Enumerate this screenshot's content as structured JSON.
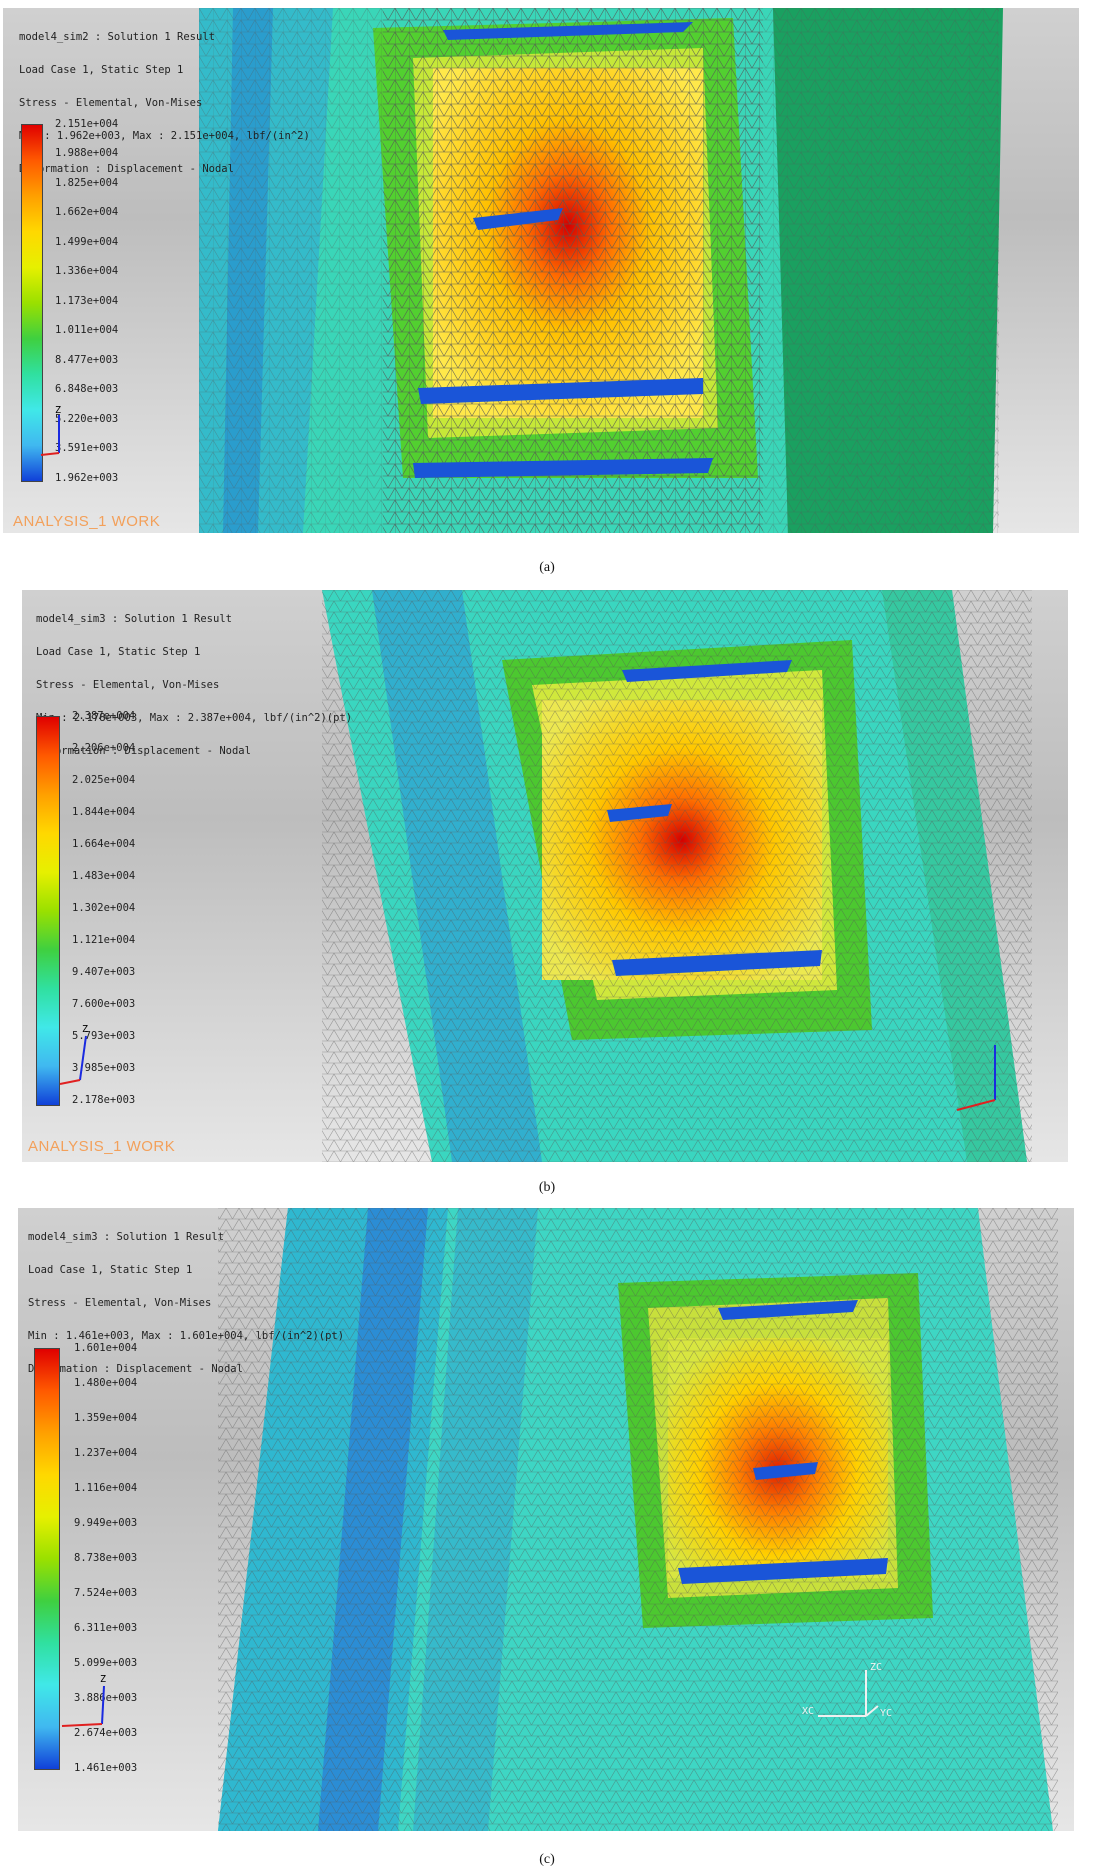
{
  "panels": [
    {
      "header": [
        "model4_sim2 : Solution 1 Result",
        "Load Case 1, Static Step 1",
        "Stress - Elemental, Von-Mises",
        "Min : 1.962e+003, Max : 2.151e+004, lbf/(in^2)",
        "Deformation : Displacement - Nodal"
      ],
      "legend": [
        "2.151e+004",
        "1.988e+004",
        "1.825e+004",
        "1.662e+004",
        "1.499e+004",
        "1.336e+004",
        "1.173e+004",
        "1.011e+004",
        "8.477e+003",
        "6.848e+003",
        "5.220e+003",
        "3.591e+003",
        "1.962e+003"
      ],
      "work_label": "ANALYSIS_1 WORK",
      "caption": "(a)"
    },
    {
      "header": [
        "model4_sim3 : Solution 1 Result",
        "Load Case 1, Static Step 1",
        "Stress - Elemental, Von-Mises",
        "Min : 2.178e+003, Max : 2.387e+004, lbf/(in^2)(pt)",
        "Deformation : Displacement - Nodal"
      ],
      "legend": [
        "2.387e+004",
        "2.206e+004",
        "2.025e+004",
        "1.844e+004",
        "1.664e+004",
        "1.483e+004",
        "1.302e+004",
        "1.121e+004",
        "9.407e+003",
        "7.600e+003",
        "5.793e+003",
        "3.985e+003",
        "2.178e+003"
      ],
      "work_label": "ANALYSIS_1 WORK",
      "caption": "(b)"
    },
    {
      "header": [
        "model4_sim3 : Solution 1 Result",
        "Load Case 1, Static Step 1",
        "Stress - Elemental, Von-Mises",
        "Min : 1.461e+003, Max : 1.601e+004, lbf/(in^2)(pt)",
        "Deformation : Displacement - Nodal"
      ],
      "legend": [
        "1.601e+004",
        "1.480e+004",
        "1.359e+004",
        "1.237e+004",
        "1.116e+004",
        "9.949e+003",
        "8.738e+003",
        "7.524e+003",
        "6.311e+003",
        "5.099e+003",
        "3.886e+003",
        "2.674e+003",
        "1.461e+003"
      ],
      "work_label": "",
      "caption": "(c)"
    }
  ],
  "triad": {
    "z": "Z",
    "zc": "ZC",
    "xc": "XC",
    "yc": "YC"
  },
  "colors": {
    "max": "#e00000",
    "high": "#ffa000",
    "mid": "#ffe000",
    "low_mid": "#3fd040",
    "low": "#40e8e8",
    "min": "#1040d8",
    "mesh": "#555555"
  }
}
